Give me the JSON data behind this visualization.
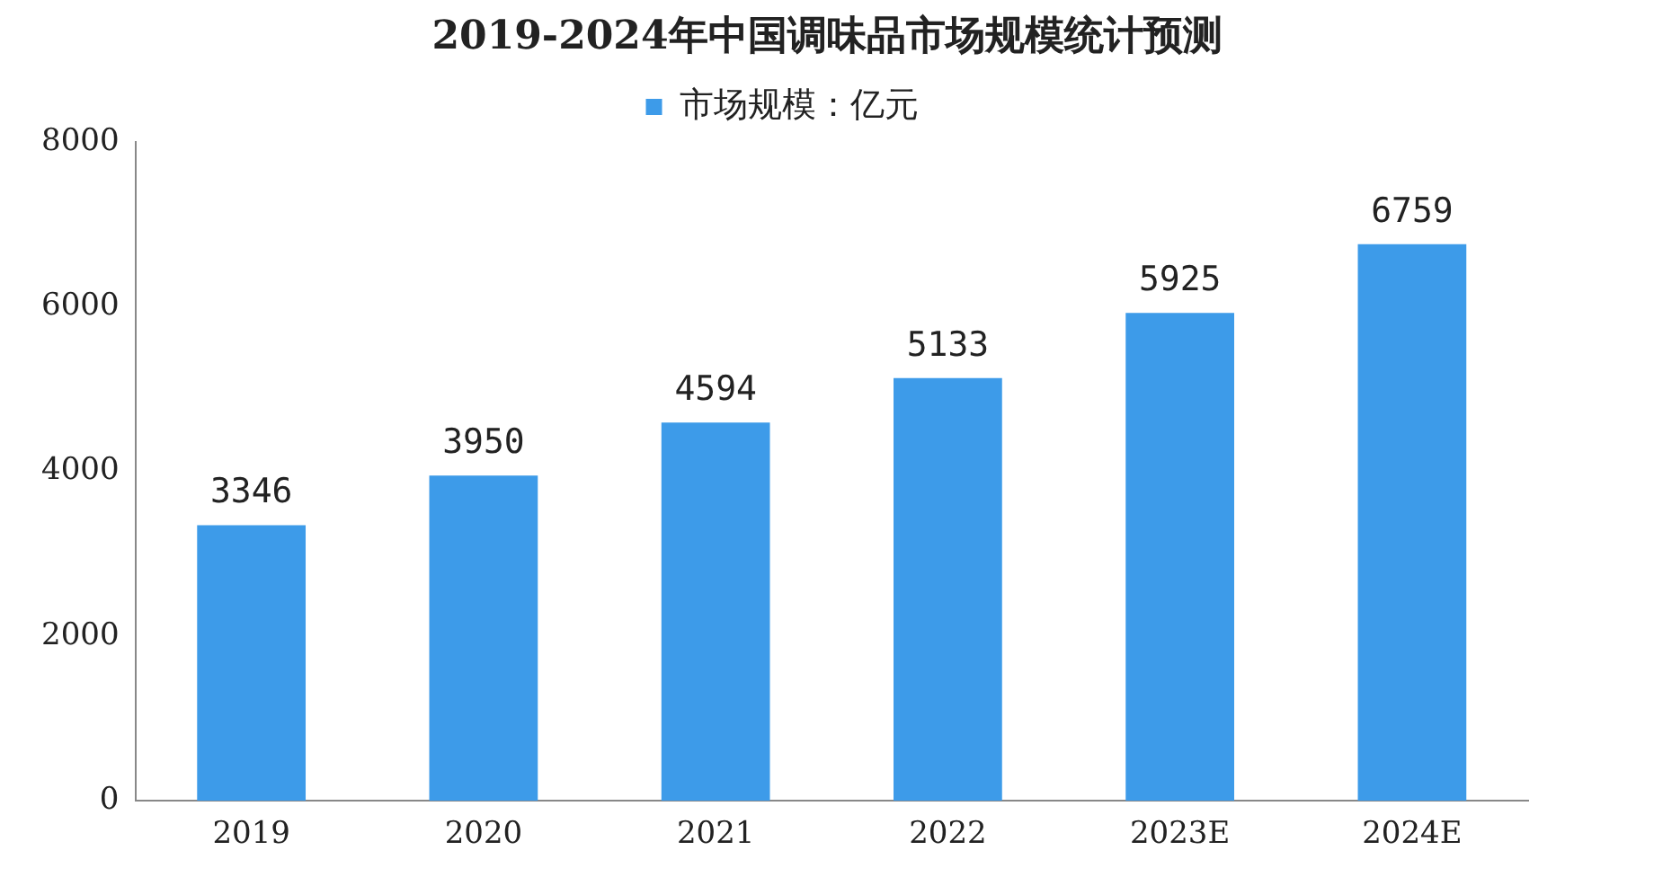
{
  "chart_data": {
    "type": "bar",
    "title": "2019-2024年中国调味品市场规模统计预测",
    "categories": [
      "2019",
      "2020",
      "2021",
      "2022",
      "2023E",
      "2024E"
    ],
    "series": [
      {
        "name": "市场规模：亿元",
        "color": "#3d9be9",
        "values": [
          3346,
          3950,
          4594,
          5133,
          5925,
          6759
        ]
      }
    ],
    "ylim": [
      0,
      8000
    ],
    "yticks": [
      0,
      2000,
      4000,
      6000,
      8000
    ],
    "grid": false,
    "legend": "top",
    "data_labels": true
  }
}
